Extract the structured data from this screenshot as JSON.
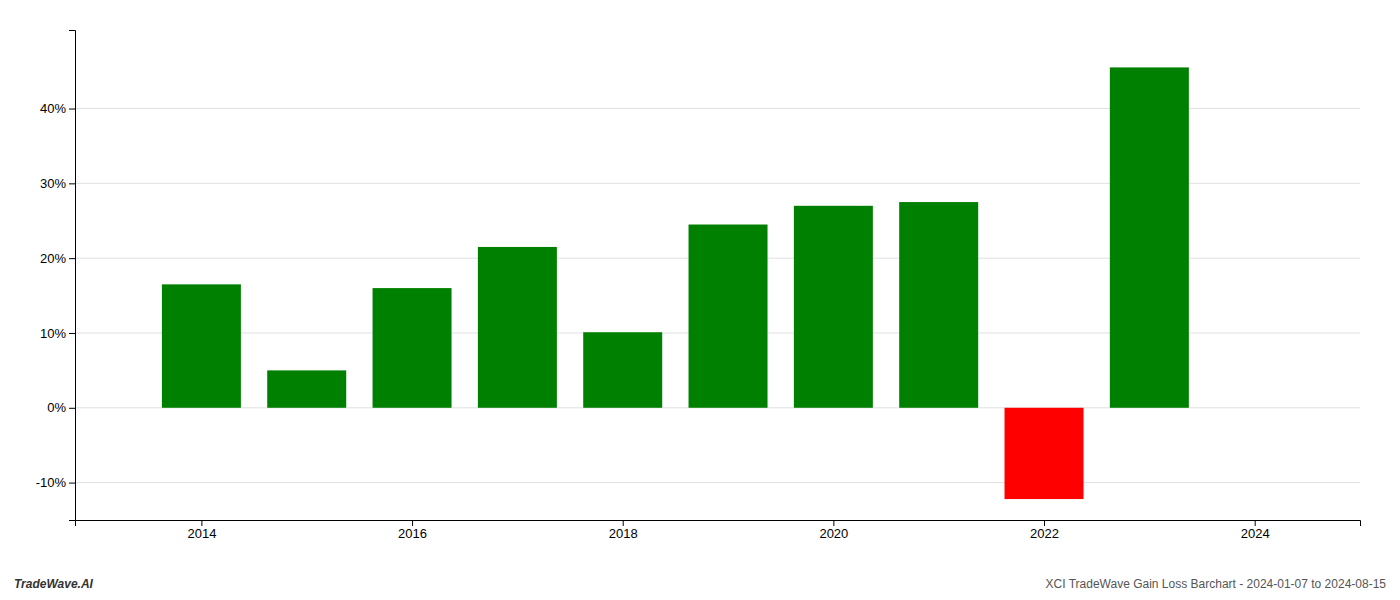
{
  "chart_data": {
    "type": "bar",
    "x": [
      2014,
      2015,
      2016,
      2017,
      2018,
      2019,
      2020,
      2021,
      2022,
      2023
    ],
    "values": [
      0.165,
      0.05,
      0.16,
      0.215,
      0.101,
      0.245,
      0.27,
      0.275,
      -0.122,
      0.455
    ],
    "colors": [
      "#008000",
      "#008000",
      "#008000",
      "#008000",
      "#008000",
      "#008000",
      "#008000",
      "#008000",
      "#ff0000",
      "#008000"
    ],
    "xlim": [
      2012.8,
      2025.0
    ],
    "xticks": [
      2014,
      2016,
      2018,
      2020,
      2022,
      2024
    ],
    "ylim": [
      -0.15,
      0.505
    ],
    "yticks": [
      {
        "value": -0.1,
        "label": "-10%"
      },
      {
        "value": 0.0,
        "label": "0%"
      },
      {
        "value": 0.1,
        "label": "10%"
      },
      {
        "value": 0.2,
        "label": "20%"
      },
      {
        "value": 0.3,
        "label": "30%"
      },
      {
        "value": 0.4,
        "label": "40%"
      }
    ],
    "grid": true,
    "annotations": [
      "TradeWave.AI",
      "XCI TradeWave Gain Loss Barchart - 2024-01-07 to 2024-08-15"
    ]
  }
}
